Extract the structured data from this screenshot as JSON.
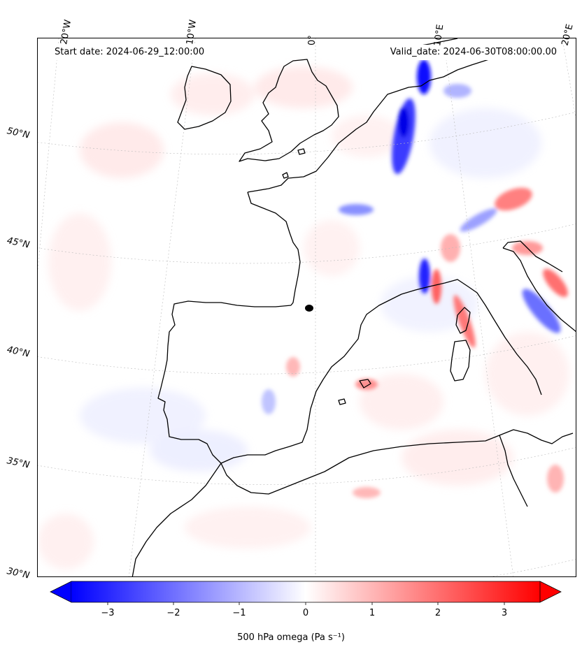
{
  "header": {
    "start_date": "Start date: 2024-06-29_12:00:00",
    "valid_date": "Valid_date: 2024-06-30T08:00:00.00"
  },
  "graticule": {
    "longitudes": [
      "20°W",
      "10°W",
      "0°",
      "10°E",
      "20°E"
    ],
    "latitudes": [
      "50°N",
      "45°N",
      "40°N",
      "35°N",
      "30°N"
    ]
  },
  "colorbar": {
    "label": "500 hPa omega (Pa s⁻¹)",
    "ticks": [
      "−3",
      "−2",
      "−1",
      "0",
      "1",
      "2",
      "3"
    ],
    "min": -3.5,
    "max": 3.5,
    "colormap": "bwr",
    "color_low": "#0000ff",
    "color_mid": "#ffffff",
    "color_high": "#ff0000"
  },
  "map": {
    "variable": "500 hPa omega",
    "projection": "conic",
    "coastline_color": "#000000"
  }
}
